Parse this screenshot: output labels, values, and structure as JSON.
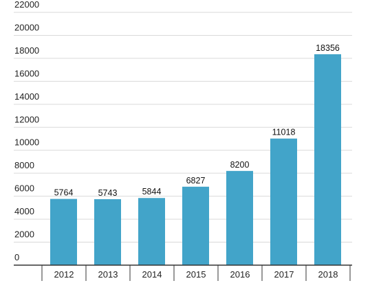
{
  "chart_data": {
    "type": "bar",
    "title": "",
    "xlabel": "",
    "ylabel": "",
    "categories": [
      "2012",
      "2013",
      "2014",
      "2015",
      "2016",
      "2017",
      "2018"
    ],
    "values": [
      5764,
      5743,
      5844,
      6827,
      8200,
      11018,
      18356
    ],
    "ylim": [
      0,
      22000
    ],
    "yticks": [
      0,
      2000,
      4000,
      6000,
      8000,
      10000,
      12000,
      14000,
      16000,
      18000,
      20000,
      22000
    ],
    "grid": true,
    "legend": "none",
    "bar_color": "#42a4c9",
    "grid_color": "#d9d9d9",
    "axis_color": "#333333"
  }
}
